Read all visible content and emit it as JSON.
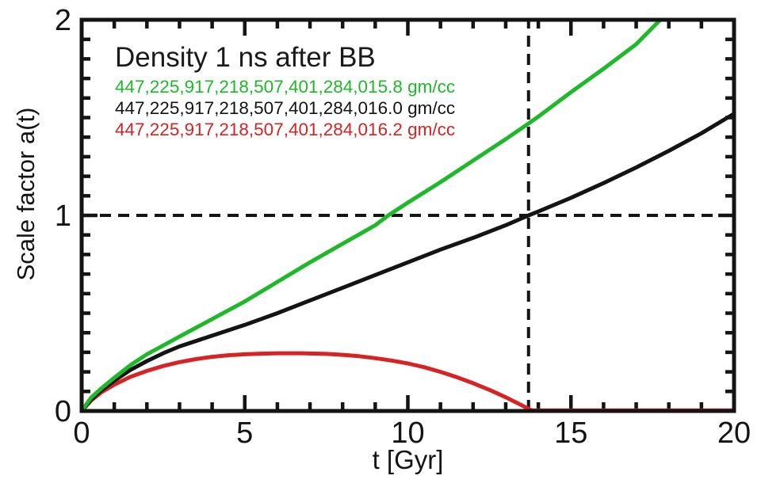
{
  "chart_data": {
    "type": "line",
    "title": "Density 1 ns after BB",
    "xlabel": "t [Gyr]",
    "ylabel": "Scale factor a(t)",
    "xlim": [
      0,
      20
    ],
    "ylim": [
      0,
      2
    ],
    "x_major_ticks": [
      0,
      5,
      10,
      15,
      20
    ],
    "x_minor_tick_step": 1,
    "y_major_ticks": [
      0,
      1,
      2
    ],
    "y_minor_tick_step": 0.1,
    "grid": false,
    "legend_position": "top-left-inside",
    "axis_color": "#141414",
    "reference_lines": [
      {
        "axis": "y",
        "value": 1.0,
        "style": "dashed",
        "color": "#141414"
      },
      {
        "axis": "x",
        "value": 13.7,
        "style": "dashed",
        "color": "#141414"
      }
    ],
    "series": [
      {
        "name": "447,225,917,218,507,401,284,015.8 gm/cc",
        "color": "#1eb928",
        "behavior": "open-universe-accelerating",
        "points": [
          [
            0,
            0
          ],
          [
            0.3,
            0.07
          ],
          [
            0.6,
            0.115
          ],
          [
            1,
            0.17
          ],
          [
            1.5,
            0.235
          ],
          [
            2,
            0.29
          ],
          [
            2.5,
            0.335
          ],
          [
            3,
            0.38
          ],
          [
            3.5,
            0.425
          ],
          [
            4,
            0.47
          ],
          [
            5,
            0.56
          ],
          [
            6,
            0.66
          ],
          [
            7,
            0.76
          ],
          [
            8,
            0.855
          ],
          [
            9,
            0.95
          ],
          [
            9.4,
            1.0
          ],
          [
            10,
            1.065
          ],
          [
            11,
            1.17
          ],
          [
            12,
            1.28
          ],
          [
            13,
            1.39
          ],
          [
            13.7,
            1.47
          ],
          [
            14,
            1.505
          ],
          [
            15,
            1.63
          ],
          [
            16,
            1.75
          ],
          [
            17,
            1.875
          ],
          [
            17.8,
            2.01
          ],
          [
            17.9,
            2.03
          ]
        ]
      },
      {
        "name": "447,225,917,218,507,401,284,016.0 gm/cc",
        "color": "#141414",
        "behavior": "critical-density-flat",
        "points": [
          [
            0,
            0
          ],
          [
            0.3,
            0.06
          ],
          [
            0.6,
            0.105
          ],
          [
            1,
            0.155
          ],
          [
            1.5,
            0.21
          ],
          [
            2,
            0.255
          ],
          [
            2.5,
            0.295
          ],
          [
            3,
            0.33
          ],
          [
            4,
            0.385
          ],
          [
            5,
            0.44
          ],
          [
            6,
            0.5
          ],
          [
            7,
            0.565
          ],
          [
            8,
            0.63
          ],
          [
            9,
            0.695
          ],
          [
            10,
            0.76
          ],
          [
            11,
            0.825
          ],
          [
            12,
            0.885
          ],
          [
            13,
            0.95
          ],
          [
            13.7,
            1.0
          ],
          [
            14,
            1.02
          ],
          [
            15,
            1.09
          ],
          [
            16,
            1.165
          ],
          [
            17,
            1.245
          ],
          [
            18,
            1.33
          ],
          [
            19,
            1.42
          ],
          [
            20,
            1.52
          ],
          [
            20.2,
            1.53
          ]
        ]
      },
      {
        "name": "447,225,917,218,507,401,284,016.2 gm/cc",
        "color": "#d72323",
        "behavior": "closed-universe-recollapse",
        "points": [
          [
            0,
            0
          ],
          [
            0.3,
            0.055
          ],
          [
            0.6,
            0.095
          ],
          [
            1,
            0.135
          ],
          [
            1.5,
            0.175
          ],
          [
            2,
            0.205
          ],
          [
            2.5,
            0.23
          ],
          [
            3,
            0.25
          ],
          [
            3.5,
            0.265
          ],
          [
            4,
            0.277
          ],
          [
            4.5,
            0.285
          ],
          [
            5,
            0.29
          ],
          [
            5.5,
            0.293
          ],
          [
            6,
            0.295
          ],
          [
            6.7,
            0.295
          ],
          [
            7.5,
            0.292
          ],
          [
            8,
            0.287
          ],
          [
            8.5,
            0.28
          ],
          [
            9,
            0.27
          ],
          [
            9.5,
            0.258
          ],
          [
            10,
            0.243
          ],
          [
            10.5,
            0.224
          ],
          [
            11,
            0.2
          ],
          [
            11.5,
            0.173
          ],
          [
            12,
            0.142
          ],
          [
            12.5,
            0.108
          ],
          [
            13,
            0.07
          ],
          [
            13.4,
            0.037
          ],
          [
            13.8,
            0.003
          ],
          [
            20.2,
            0.003
          ]
        ]
      }
    ]
  }
}
